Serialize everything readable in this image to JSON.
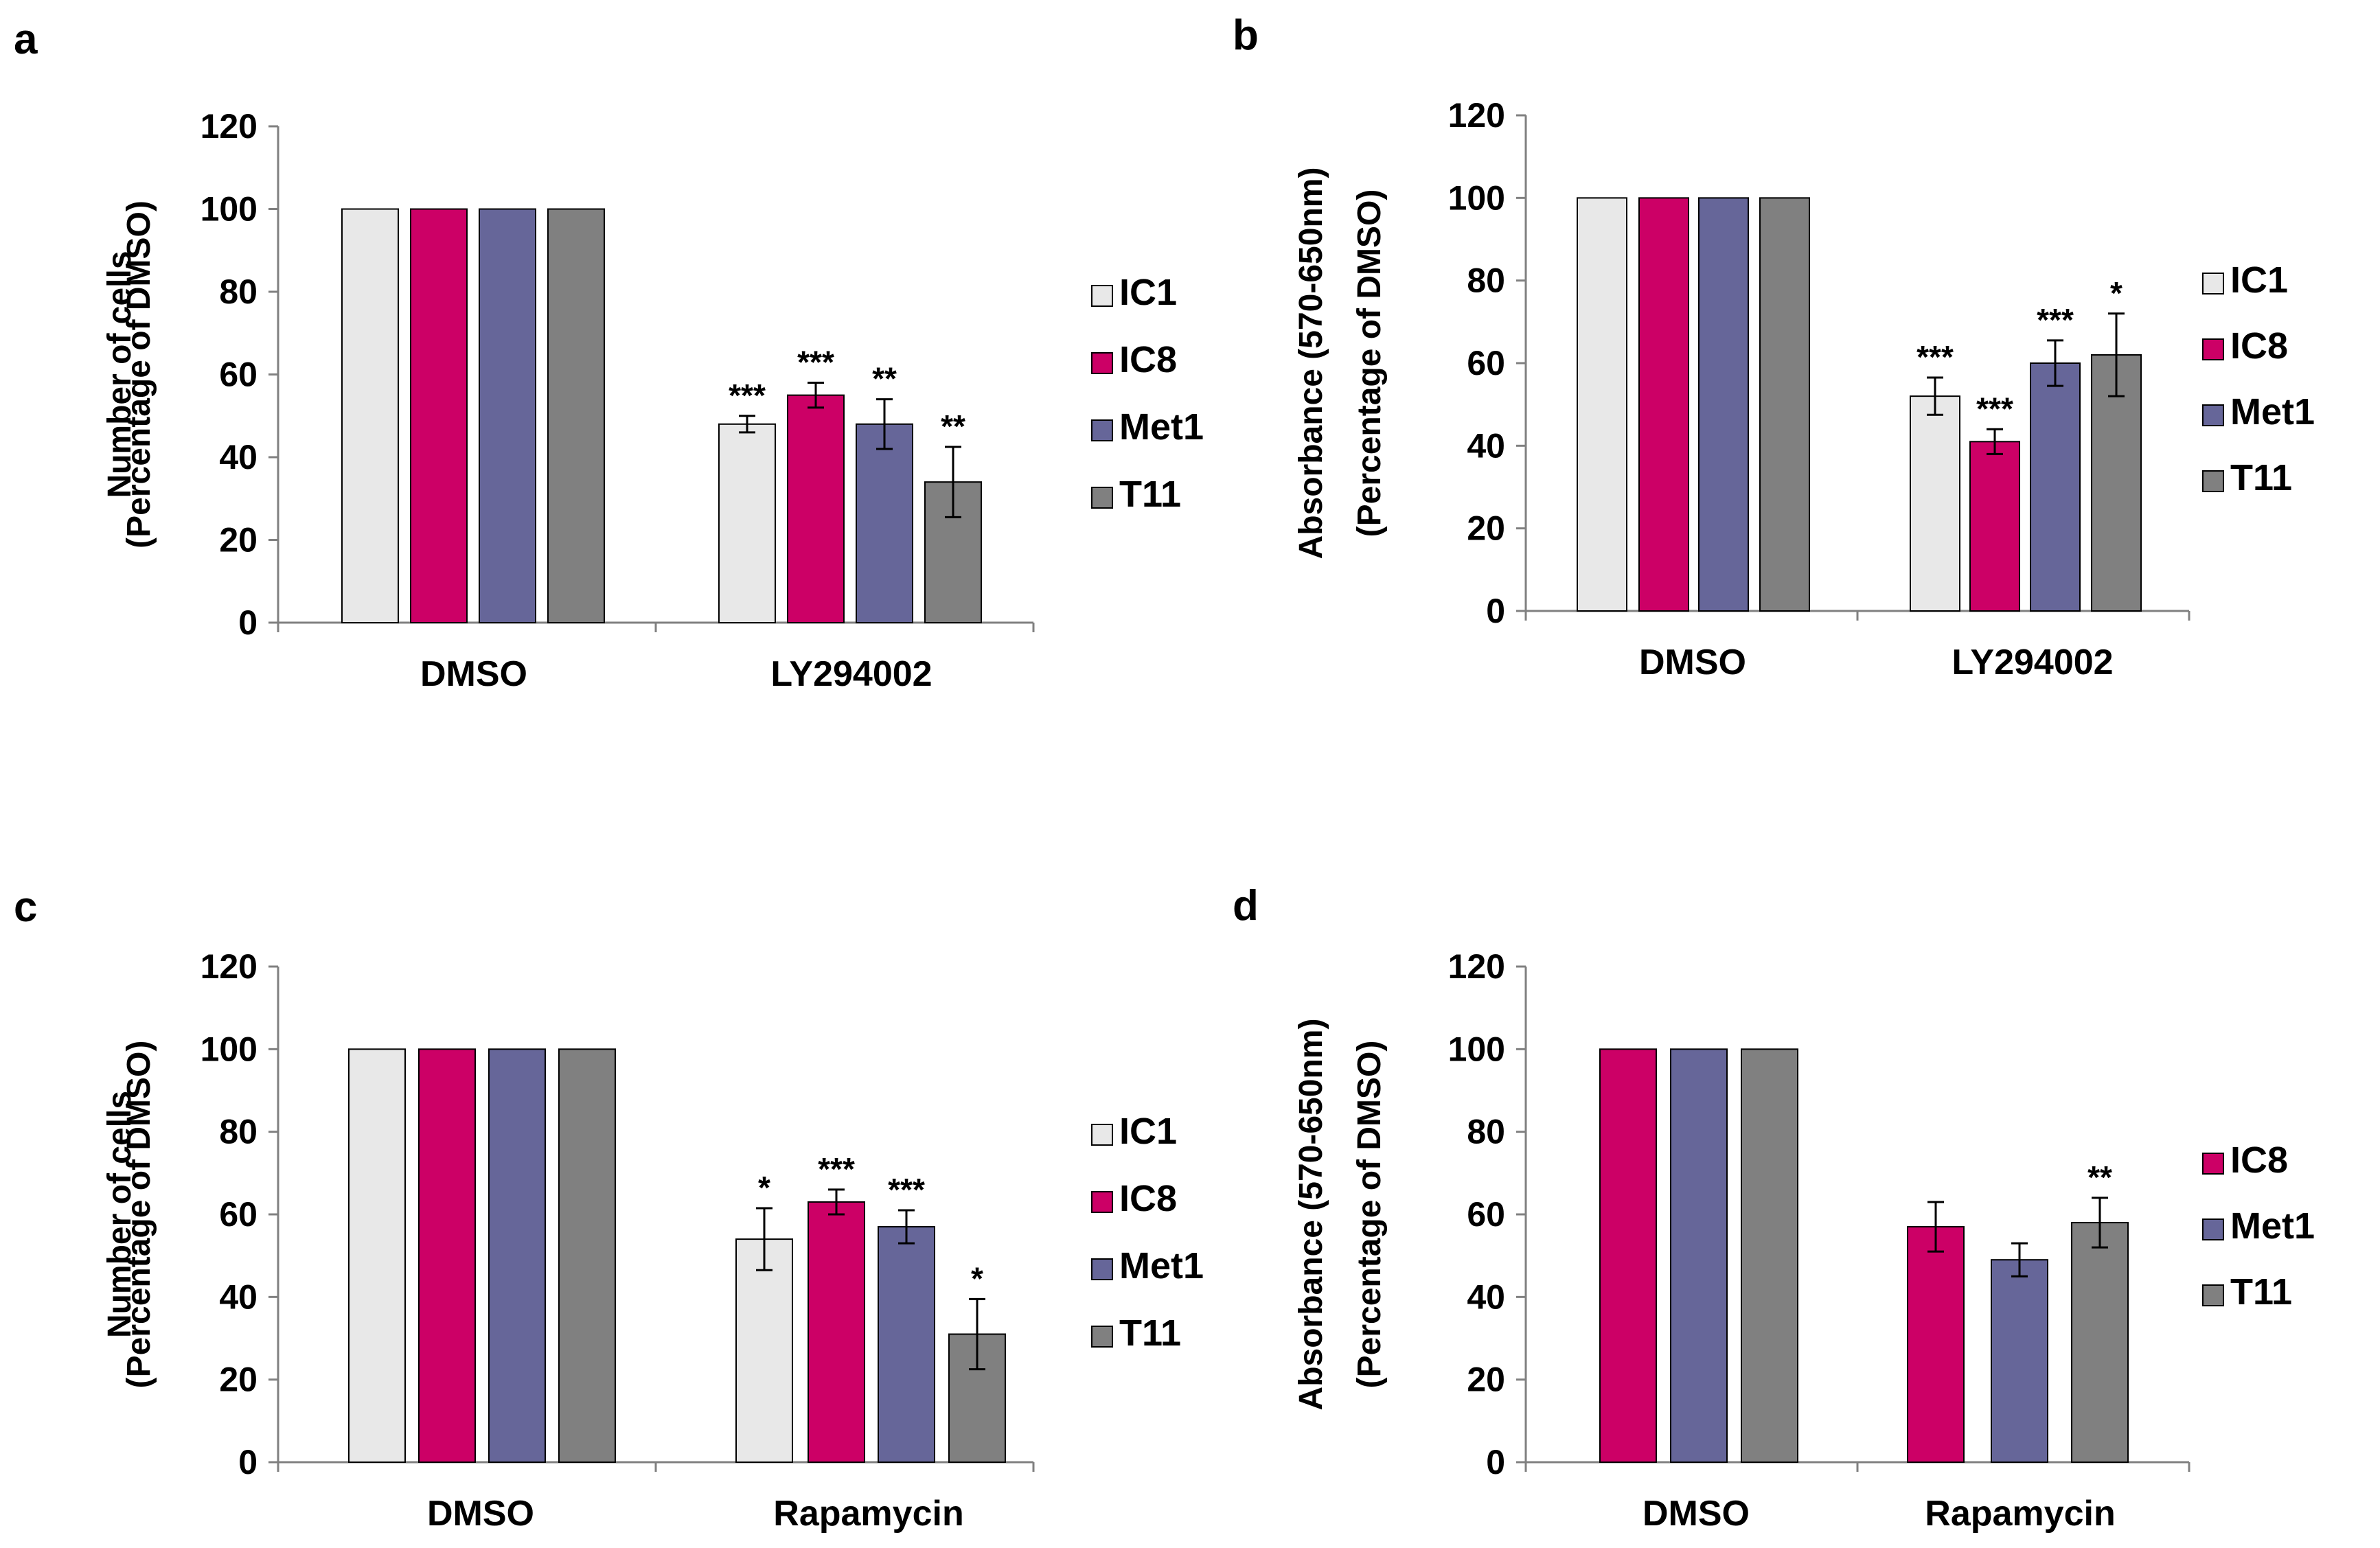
{
  "colors": {
    "IC1": "#e8e8e8",
    "IC8": "#cc0066",
    "Met1": "#666699",
    "T11": "#808080",
    "axis": "#808080",
    "outline": "#000000"
  },
  "chart_data": [
    {
      "panel": "a",
      "type": "bar",
      "ylabel_lines": [
        "Number of cells",
        "(Percentage of DMSO)"
      ],
      "ylim": [
        0,
        120
      ],
      "yticks": [
        0,
        20,
        40,
        60,
        80,
        100,
        120
      ],
      "categories": [
        "DMSO",
        "LY294002"
      ],
      "series": [
        {
          "name": "IC1",
          "values": [
            100,
            48
          ],
          "errors": [
            0,
            2
          ],
          "sig": [
            "",
            "***"
          ]
        },
        {
          "name": "IC8",
          "values": [
            100,
            55
          ],
          "errors": [
            0,
            3
          ],
          "sig": [
            "",
            "***"
          ]
        },
        {
          "name": "Met1",
          "values": [
            100,
            48
          ],
          "errors": [
            0,
            6
          ],
          "sig": [
            "",
            "**"
          ]
        },
        {
          "name": "T11",
          "values": [
            100,
            34
          ],
          "errors": [
            0,
            8.5
          ],
          "sig": [
            "",
            "**"
          ]
        }
      ],
      "legend": [
        "IC1",
        "IC8",
        "Met1",
        "T11"
      ]
    },
    {
      "panel": "b",
      "type": "bar",
      "ylabel_lines": [
        "Absorbance (570-650nm)",
        "(Percentage of DMSO)"
      ],
      "ylim": [
        0,
        120
      ],
      "yticks": [
        0,
        20,
        40,
        60,
        80,
        100,
        120
      ],
      "categories": [
        "DMSO",
        "LY294002"
      ],
      "series": [
        {
          "name": "IC1",
          "values": [
            100,
            52
          ],
          "errors": [
            0,
            4.5
          ],
          "sig": [
            "",
            "***"
          ]
        },
        {
          "name": "IC8",
          "values": [
            100,
            41
          ],
          "errors": [
            0,
            3
          ],
          "sig": [
            "",
            "***"
          ]
        },
        {
          "name": "Met1",
          "values": [
            100,
            60
          ],
          "errors": [
            0,
            5.5
          ],
          "sig": [
            "",
            "***"
          ]
        },
        {
          "name": "T11",
          "values": [
            100,
            62
          ],
          "errors": [
            0,
            10
          ],
          "sig": [
            "",
            "*"
          ]
        }
      ],
      "legend": [
        "IC1",
        "IC8",
        "Met1",
        "T11"
      ]
    },
    {
      "panel": "c",
      "type": "bar",
      "ylabel_lines": [
        "Number of cells",
        "(Percentage of DMSO)"
      ],
      "ylim": [
        0,
        120
      ],
      "yticks": [
        0,
        20,
        40,
        60,
        80,
        100,
        120
      ],
      "categories": [
        "DMSO",
        "Rapamycin"
      ],
      "series": [
        {
          "name": "IC1",
          "values": [
            100,
            54
          ],
          "errors": [
            0,
            7.5
          ],
          "sig": [
            "",
            "*"
          ]
        },
        {
          "name": "IC8",
          "values": [
            100,
            63
          ],
          "errors": [
            0,
            3
          ],
          "sig": [
            "",
            "***"
          ]
        },
        {
          "name": "Met1",
          "values": [
            100,
            57
          ],
          "errors": [
            0,
            4
          ],
          "sig": [
            "",
            "***"
          ]
        },
        {
          "name": "T11",
          "values": [
            100,
            31
          ],
          "errors": [
            0,
            8.5
          ],
          "sig": [
            "",
            "*"
          ]
        }
      ],
      "legend": [
        "IC1",
        "IC8",
        "Met1",
        "T11"
      ]
    },
    {
      "panel": "d",
      "type": "bar",
      "ylabel_lines": [
        "Absorbance (570-650nm)",
        "(Percentage of DMSO)"
      ],
      "ylim": [
        0,
        120
      ],
      "yticks": [
        0,
        20,
        40,
        60,
        80,
        100,
        120
      ],
      "categories": [
        "DMSO",
        "Rapamycin"
      ],
      "series": [
        {
          "name": "IC8",
          "values": [
            100,
            57
          ],
          "errors": [
            0,
            6
          ],
          "sig": [
            "",
            ""
          ]
        },
        {
          "name": "Met1",
          "values": [
            100,
            49
          ],
          "errors": [
            0,
            4
          ],
          "sig": [
            "",
            ""
          ]
        },
        {
          "name": "T11",
          "values": [
            100,
            58
          ],
          "errors": [
            0,
            6
          ],
          "sig": [
            "",
            "**"
          ]
        }
      ],
      "legend": [
        "IC8",
        "Met1",
        "T11"
      ]
    }
  ]
}
